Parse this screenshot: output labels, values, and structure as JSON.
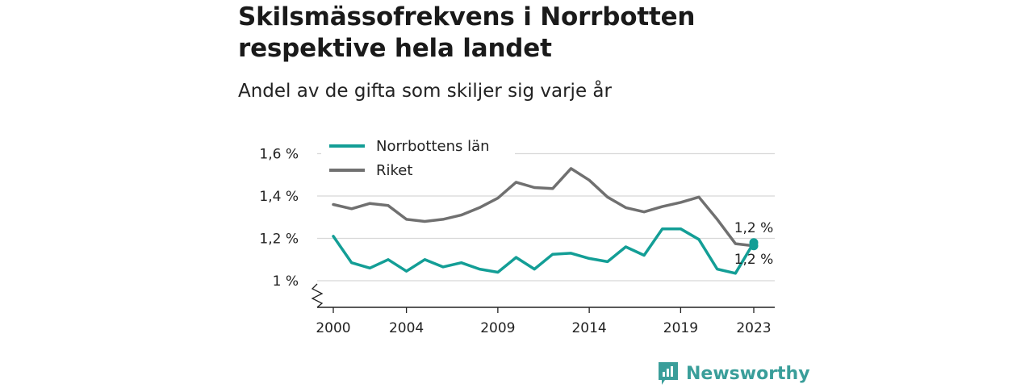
{
  "title": "Skilsmässofrekvens i Norrbotten respektive hela landet",
  "subtitle": "Andel av de gifta som skiljer sig varje år",
  "brand": {
    "name": "Newsworthy"
  },
  "colors": {
    "norrbotten": "#139e96",
    "riket": "#707070",
    "grid": "#d8d8d8",
    "brand": "#3a9e9a"
  },
  "chart_data": {
    "type": "line",
    "x": [
      2000,
      2001,
      2002,
      2003,
      2004,
      2005,
      2006,
      2007,
      2008,
      2009,
      2010,
      2011,
      2012,
      2013,
      2014,
      2015,
      2016,
      2017,
      2018,
      2019,
      2020,
      2021,
      2022,
      2023
    ],
    "series": [
      {
        "name": "Norrbottens län",
        "values": [
          1.21,
          1.085,
          1.06,
          1.1,
          1.045,
          1.1,
          1.065,
          1.085,
          1.055,
          1.04,
          1.11,
          1.055,
          1.125,
          1.13,
          1.105,
          1.09,
          1.16,
          1.12,
          1.245,
          1.245,
          1.195,
          1.055,
          1.035,
          1.18
        ]
      },
      {
        "name": "Riket",
        "values": [
          1.36,
          1.34,
          1.365,
          1.355,
          1.29,
          1.28,
          1.29,
          1.31,
          1.345,
          1.39,
          1.465,
          1.44,
          1.435,
          1.53,
          1.475,
          1.395,
          1.345,
          1.325,
          1.35,
          1.37,
          1.395,
          1.29,
          1.175,
          1.165
        ]
      }
    ],
    "y_ticks": [
      "1 %",
      "1,2 %",
      "1,4 %",
      "1,6 %"
    ],
    "y_tick_values": [
      1.0,
      1.2,
      1.4,
      1.6
    ],
    "x_ticks": [
      "2000",
      "2004",
      "2009",
      "2014",
      "2019",
      "2023"
    ],
    "x_tick_values": [
      2000,
      2004,
      2009,
      2014,
      2019,
      2023
    ],
    "ylim": [
      0.88,
      1.68
    ],
    "xlim": [
      2000,
      2023
    ],
    "end_labels": [
      "1,2 %",
      "1,2 %"
    ],
    "legend": "top-left",
    "grid": true
  }
}
